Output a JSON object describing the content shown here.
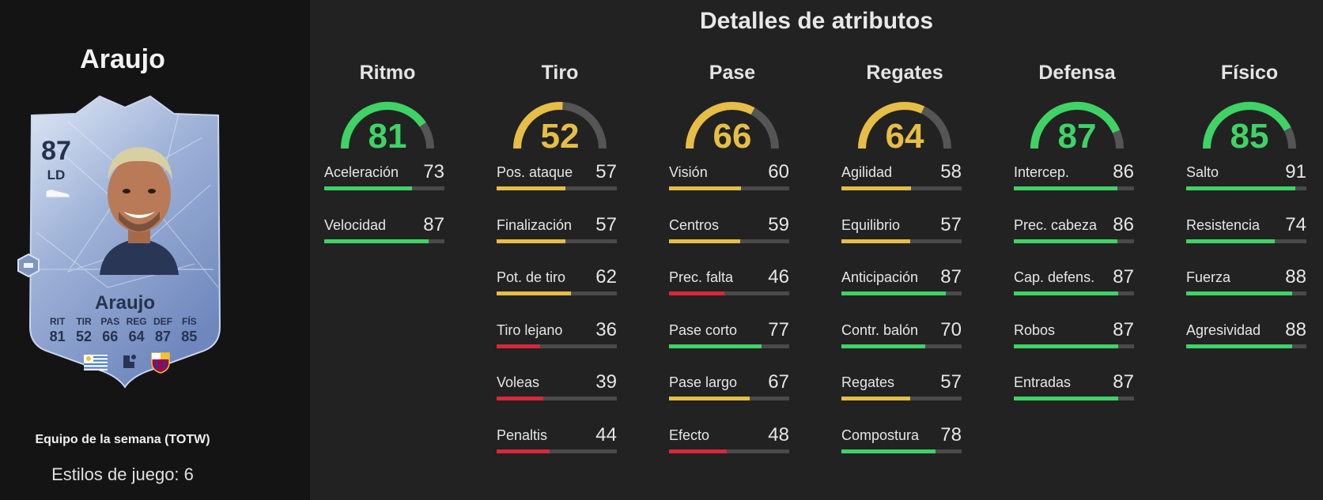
{
  "colors": {
    "high": "#3fd366",
    "mid": "#e6be46",
    "low": "#d7283c",
    "track": "#4a4a4a"
  },
  "player": {
    "name": "Araujo",
    "card_name": "Araujo",
    "rating": "87",
    "position": "LD",
    "card_stats": [
      {
        "label": "RIT",
        "value": "81"
      },
      {
        "label": "TIR",
        "value": "52"
      },
      {
        "label": "PAS",
        "value": "66"
      },
      {
        "label": "REG",
        "value": "64"
      },
      {
        "label": "DEF",
        "value": "87"
      },
      {
        "label": "FÍS",
        "value": "85"
      }
    ],
    "promo": "Equipo de la semana (TOTW)",
    "playstyles": "Estilos de juego: 6"
  },
  "section_title": "Detalles de atributos",
  "categories": [
    {
      "title": "Ritmo",
      "value": 81,
      "stats": [
        {
          "name": "Aceleración",
          "value": 73
        },
        {
          "name": "Velocidad",
          "value": 87
        }
      ]
    },
    {
      "title": "Tiro",
      "value": 52,
      "stats": [
        {
          "name": "Pos. ataque",
          "value": 57
        },
        {
          "name": "Finalización",
          "value": 57
        },
        {
          "name": "Pot. de tiro",
          "value": 62
        },
        {
          "name": "Tiro lejano",
          "value": 36
        },
        {
          "name": "Voleas",
          "value": 39
        },
        {
          "name": "Penaltis",
          "value": 44
        }
      ]
    },
    {
      "title": "Pase",
      "value": 66,
      "stats": [
        {
          "name": "Visión",
          "value": 60
        },
        {
          "name": "Centros",
          "value": 59
        },
        {
          "name": "Prec. falta",
          "value": 46
        },
        {
          "name": "Pase corto",
          "value": 77
        },
        {
          "name": "Pase largo",
          "value": 67
        },
        {
          "name": "Efecto",
          "value": 48
        }
      ]
    },
    {
      "title": "Regates",
      "value": 64,
      "stats": [
        {
          "name": "Agilidad",
          "value": 58
        },
        {
          "name": "Equilibrio",
          "value": 57
        },
        {
          "name": "Anticipación",
          "value": 87
        },
        {
          "name": "Contr. balón",
          "value": 70
        },
        {
          "name": "Regates",
          "value": 57
        },
        {
          "name": "Compostura",
          "value": 78
        }
      ]
    },
    {
      "title": "Defensa",
      "value": 87,
      "stats": [
        {
          "name": "Intercep.",
          "value": 86
        },
        {
          "name": "Prec. cabeza",
          "value": 86
        },
        {
          "name": "Cap. defens.",
          "value": 87
        },
        {
          "name": "Robos",
          "value": 87
        },
        {
          "name": "Entradas",
          "value": 87
        }
      ]
    },
    {
      "title": "Físico",
      "value": 85,
      "stats": [
        {
          "name": "Salto",
          "value": 91
        },
        {
          "name": "Resistencia",
          "value": 74
        },
        {
          "name": "Fuerza",
          "value": 88
        },
        {
          "name": "Agresividad",
          "value": 88
        }
      ]
    }
  ]
}
